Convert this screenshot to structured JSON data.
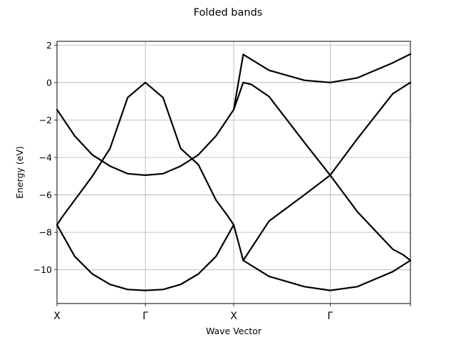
{
  "chart_data": {
    "type": "line",
    "title": "Folded bands",
    "xlabel": "Wave Vector",
    "ylabel": "Energy (eV)",
    "xlim": [
      0,
      1
    ],
    "ylim": [
      -11.8,
      2.2
    ],
    "grid": true,
    "x_ticks": [
      {
        "x": 0.0,
        "label": "X"
      },
      {
        "x": 0.25,
        "label": "Γ"
      },
      {
        "x": 0.5,
        "label": "X"
      },
      {
        "x": 0.773,
        "label": "Γ"
      },
      {
        "x": 1.0,
        "label": ""
      }
    ],
    "y_ticks": [
      {
        "y": 2,
        "label": "2"
      },
      {
        "y": 0,
        "label": "0"
      },
      {
        "y": -2,
        "label": "−2"
      },
      {
        "y": -4,
        "label": "−4"
      },
      {
        "y": -6,
        "label": "−6"
      },
      {
        "y": -8,
        "label": "−8"
      },
      {
        "y": -10,
        "label": "−10"
      }
    ],
    "series": [
      {
        "color": "#000000",
        "x": [
          0,
          0.017,
          0.05,
          0.1,
          0.15,
          0.2,
          0.25,
          0.3,
          0.35,
          0.4,
          0.45,
          0.483,
          0.5
        ],
        "y": [
          -7.6,
          -7.12,
          -6.28,
          -5.0,
          -3.52,
          -0.8,
          0.0,
          -0.8,
          -3.52,
          -4.38,
          -6.28,
          -7.12,
          -7.6
        ]
      },
      {
        "color": "#000000",
        "x": [
          0,
          0.05,
          0.1,
          0.15,
          0.2,
          0.25,
          0.3,
          0.35,
          0.4,
          0.45,
          0.5
        ],
        "y": [
          -1.45,
          -2.85,
          -3.86,
          -4.46,
          -4.87,
          -4.95,
          -4.87,
          -4.46,
          -3.86,
          -2.85,
          -1.45
        ]
      },
      {
        "color": "#000000",
        "x": [
          0,
          0.05,
          0.1,
          0.15,
          0.2,
          0.25,
          0.3,
          0.35,
          0.4,
          0.45,
          0.5
        ],
        "y": [
          -7.6,
          -9.28,
          -10.22,
          -10.78,
          -11.05,
          -11.1,
          -11.05,
          -10.78,
          -10.22,
          -9.28,
          -7.6
        ]
      },
      {
        "color": "#000000",
        "x": [
          0.5,
          0.527,
          0.6,
          0.7,
          0.773,
          0.85,
          0.95,
          1.0
        ],
        "y": [
          -1.45,
          1.5,
          0.65,
          0.12,
          0.0,
          0.25,
          1.05,
          1.52
        ]
      },
      {
        "color": "#000000",
        "x": [
          0.5,
          0.527,
          0.55,
          0.6,
          0.7,
          0.773,
          0.85,
          0.95,
          0.98,
          1.0
        ],
        "y": [
          -1.45,
          0.0,
          -0.1,
          -0.75,
          -3.2,
          -4.95,
          -6.9,
          -8.9,
          -9.2,
          -9.5
        ]
      },
      {
        "color": "#000000",
        "x": [
          0.5,
          0.527,
          0.6,
          0.7,
          0.773,
          0.85,
          0.95,
          1.0
        ],
        "y": [
          -7.6,
          -9.5,
          -7.4,
          -6.0,
          -4.95,
          -3.0,
          -0.6,
          0.0
        ]
      },
      {
        "color": "#000000",
        "x": [
          0.527,
          0.6,
          0.7,
          0.773,
          0.85,
          0.95,
          1.0
        ],
        "y": [
          -9.5,
          -10.35,
          -10.9,
          -11.1,
          -10.9,
          -10.1,
          -9.5
        ]
      }
    ]
  }
}
